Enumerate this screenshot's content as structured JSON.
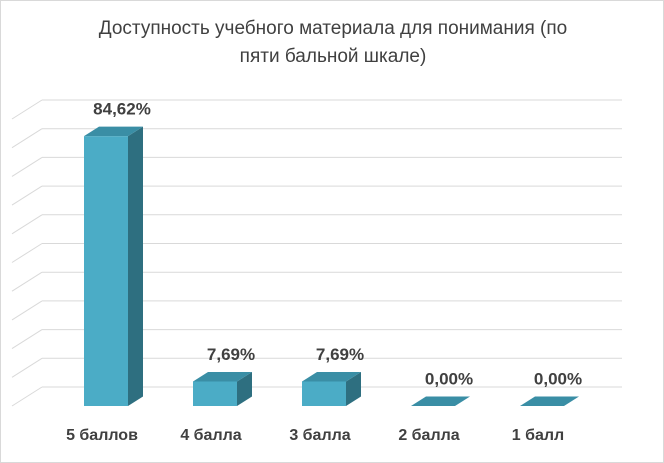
{
  "chart_data": {
    "type": "bar",
    "title_line1": "Доступность учебного материала для понимания (по",
    "title_line2": "пяти бальной шкале)",
    "categories": [
      "5 баллов",
      "4 балла",
      "3  балла",
      "2 балла",
      "1 балл"
    ],
    "values": [
      84.62,
      7.69,
      7.69,
      0.0,
      0.0
    ],
    "value_labels": [
      "84,62%",
      "7,69%",
      "7,69%",
      "0,00%",
      "0,00%"
    ],
    "xlabel": "",
    "ylabel": "",
    "ylim": [
      0,
      90
    ],
    "grid": true,
    "style": "3d-column",
    "colors": {
      "front": "#4bacc6",
      "side": "#2e6f80",
      "top": "#3a8ea5",
      "grid": "#d9d9d9",
      "text": "#404040"
    }
  }
}
